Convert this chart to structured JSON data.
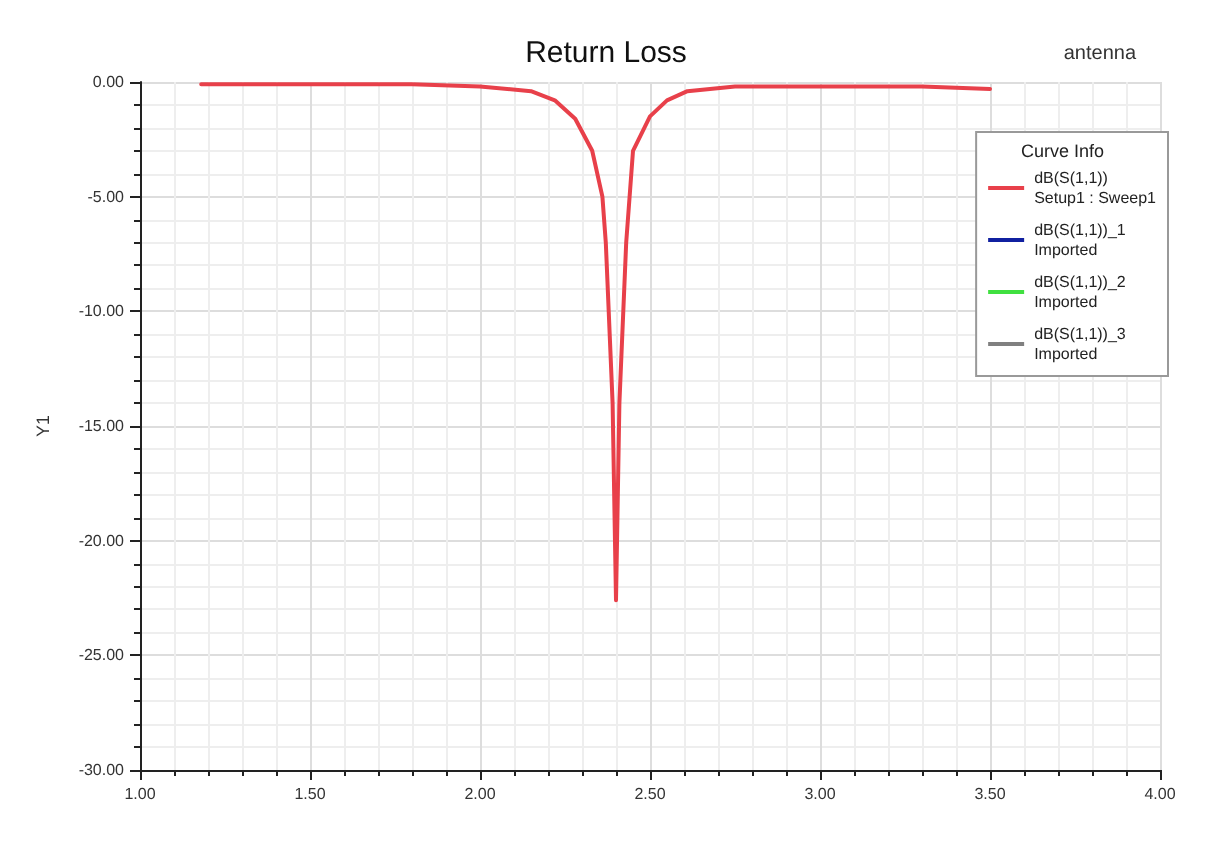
{
  "chart_data": {
    "type": "line",
    "title": "Return Loss",
    "ylabel": "Y1",
    "legend_title": "Curve Info",
    "annotations": [
      "antenna"
    ],
    "x": [
      1.18,
      1.5,
      1.8,
      2.0,
      2.15,
      2.22,
      2.28,
      2.33,
      2.36,
      2.37,
      2.39,
      2.4,
      2.41,
      2.43,
      2.45,
      2.5,
      2.55,
      2.61,
      2.75,
      3.0,
      3.3,
      3.5
    ],
    "series": [
      {
        "name": "dB(S(1,1))\nSetup1 : Sweep1",
        "color": "#e8404a",
        "values": [
          -0.1,
          -0.1,
          -0.1,
          -0.2,
          -0.4,
          -0.8,
          -1.6,
          -3,
          -5,
          -7,
          -14,
          -22.6,
          -14,
          -7,
          -3,
          -1.5,
          -0.8,
          -0.4,
          -0.2,
          -0.2,
          -0.2,
          -0.3
        ]
      },
      {
        "name": "dB(S(1,1))_1\nImported",
        "color": "#1020a0",
        "values": [
          null,
          null,
          null,
          null,
          null,
          null,
          null,
          null,
          null,
          null,
          null,
          null,
          null,
          null,
          null,
          null,
          null,
          null,
          null,
          null,
          null,
          null
        ]
      },
      {
        "name": "dB(S(1,1))_2\nImported",
        "color": "#40e040",
        "values": [
          null,
          null,
          null,
          null,
          null,
          null,
          null,
          null,
          null,
          null,
          null,
          null,
          null,
          null,
          null,
          null,
          null,
          null,
          null,
          null,
          null,
          null
        ]
      },
      {
        "name": "dB(S(1,1))_3\nImported",
        "color": "#808080",
        "values": [
          null,
          null,
          null,
          null,
          null,
          null,
          null,
          null,
          null,
          null,
          null,
          null,
          null,
          null,
          null,
          null,
          null,
          null,
          null,
          null,
          null,
          null
        ]
      }
    ],
    "xlim": [
      1,
      4
    ],
    "xticks": [
      {
        "value": 1,
        "label": "1.00"
      },
      {
        "value": 1.5,
        "label": "1.50"
      },
      {
        "value": 2,
        "label": "2.00"
      },
      {
        "value": 2.5,
        "label": "2.50"
      },
      {
        "value": 3,
        "label": "3.00"
      },
      {
        "value": 3.5,
        "label": "3.50"
      },
      {
        "value": 4,
        "label": "4.00"
      }
    ],
    "ylim": [
      -30,
      0
    ],
    "yticks": [
      {
        "value": -30,
        "label": "-30.00"
      },
      {
        "value": -25,
        "label": "-25.00"
      },
      {
        "value": -20,
        "label": "-20.00"
      },
      {
        "value": -15,
        "label": "-15.00"
      },
      {
        "value": -10,
        "label": "-10.00"
      },
      {
        "value": -5,
        "label": "-5.00"
      },
      {
        "value": 0,
        "label": "0.00"
      }
    ],
    "grid": true,
    "legend": "top right",
    "marker": "none",
    "line_style": "solid"
  }
}
